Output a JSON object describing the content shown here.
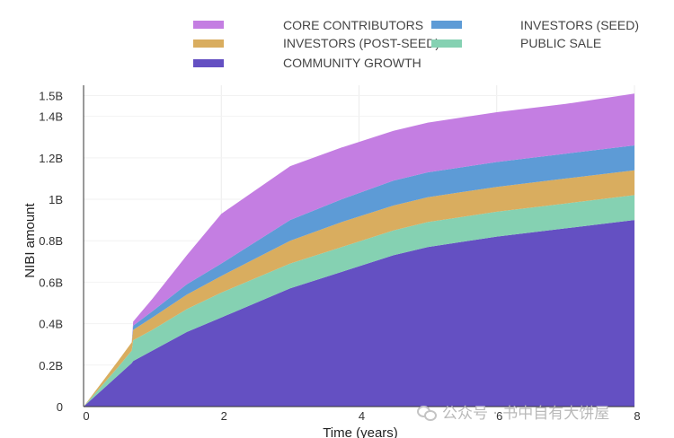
{
  "chart_data": {
    "type": "area",
    "stacked": true,
    "x": [
      0,
      0.5,
      0.7,
      0.72,
      1,
      1.5,
      2,
      3,
      3.75,
      4.5,
      5,
      6,
      7,
      8.0
    ],
    "series": [
      {
        "name": "COMMUNITY GROWTH",
        "color": "#6450c2",
        "values": [
          0,
          0.15,
          0.21,
          0.22,
          0.27,
          0.36,
          0.43,
          0.57,
          0.65,
          0.73,
          0.77,
          0.82,
          0.86,
          0.9
        ]
      },
      {
        "name": "PUBLIC SALE",
        "color": "#85d1b2",
        "values": [
          0,
          0.04,
          0.06,
          0.1,
          0.1,
          0.11,
          0.12,
          0.12,
          0.12,
          0.12,
          0.12,
          0.12,
          0.12,
          0.12
        ]
      },
      {
        "name": "INVESTORS (POST-SEED)",
        "color": "#d9ad5f",
        "values": [
          0,
          0.03,
          0.04,
          0.05,
          0.06,
          0.07,
          0.08,
          0.11,
          0.12,
          0.12,
          0.12,
          0.12,
          0.12,
          0.12
        ]
      },
      {
        "name": "INVESTORS (SEED)",
        "color": "#5d9bd6",
        "values": [
          0,
          0,
          0,
          0.02,
          0.03,
          0.05,
          0.06,
          0.1,
          0.11,
          0.12,
          0.12,
          0.12,
          0.12,
          0.12
        ]
      },
      {
        "name": "CORE CONTRIBUTORS",
        "color": "#c47ee2",
        "values": [
          0,
          0,
          0,
          0.02,
          0.06,
          0.14,
          0.24,
          0.26,
          0.25,
          0.24,
          0.24,
          0.24,
          0.24,
          0.25
        ]
      }
    ],
    "xlabel": "Time (years)",
    "ylabel": "NIBI amount",
    "xlim": [
      0,
      8
    ],
    "ylim": [
      0,
      1.55
    ],
    "xticks": [
      0,
      2,
      4,
      6,
      8
    ],
    "xtick_labels": [
      "0",
      "2",
      "4",
      "6",
      "8"
    ],
    "yticks": [
      0,
      0.2,
      0.4,
      0.6,
      0.8,
      1.0,
      1.2,
      1.4,
      1.5
    ],
    "ytick_labels": [
      "0",
      "0.2B",
      "0.4B",
      "0.6B",
      "0.8B",
      "1B",
      "1.2B",
      "1.4B",
      "1.5B"
    ],
    "grid": true,
    "legend_position": "top"
  },
  "legend": [
    {
      "label": "CORE CONTRIBUTORS",
      "color": "#c47ee2"
    },
    {
      "label": "INVESTORS (SEED)",
      "color": "#5d9bd6"
    },
    {
      "label": "INVESTORS (POST-SEED)",
      "color": "#d9ad5f"
    },
    {
      "label": "PUBLIC SALE",
      "color": "#85d1b2"
    },
    {
      "label": "COMMUNITY GROWTH",
      "color": "#6450c2"
    }
  ],
  "watermark": {
    "text": "公众号 · 书中自有大饼屋",
    "icon": "wechat-icon"
  }
}
